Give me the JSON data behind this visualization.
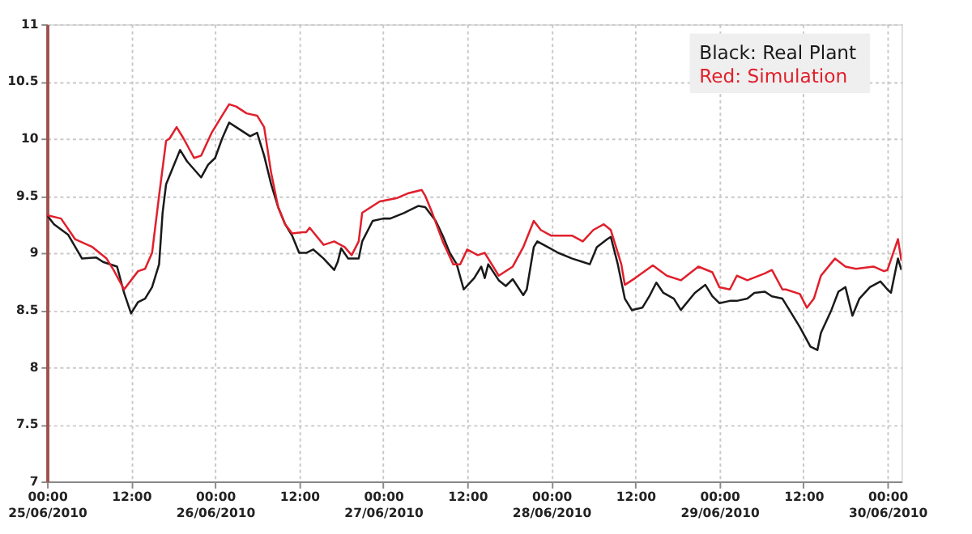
{
  "chart_data": {
    "type": "line",
    "xlim": [
      "2010-06-25T00:00",
      "2010-06-30T02:00"
    ],
    "ylim": [
      7,
      11
    ],
    "xticks": [
      {
        "value": "2010-06-25T00:00",
        "label": "00:00\n25/06/2010"
      },
      {
        "value": "2010-06-25T12:00",
        "label": "12:00"
      },
      {
        "value": "2010-06-26T00:00",
        "label": "00:00\n26/06/2010"
      },
      {
        "value": "2010-06-26T12:00",
        "label": "12:00"
      },
      {
        "value": "2010-06-27T00:00",
        "label": "00:00\n27/06/2010"
      },
      {
        "value": "2010-06-27T12:00",
        "label": "12:00"
      },
      {
        "value": "2010-06-28T00:00",
        "label": "00:00\n28/06/2010"
      },
      {
        "value": "2010-06-28T12:00",
        "label": "12:00"
      },
      {
        "value": "2010-06-29T00:00",
        "label": "00:00\n29/06/2010"
      },
      {
        "value": "2010-06-29T12:00",
        "label": "12:00"
      },
      {
        "value": "2010-06-30T00:00",
        "label": "00:00\n30/06/2010"
      }
    ],
    "yticks": [
      7,
      7.5,
      8,
      8.5,
      9,
      9.5,
      10,
      10.5,
      11
    ],
    "grid": true,
    "legend": "top right",
    "marker": "none",
    "line_style": "solid",
    "series": [
      {
        "name": "Black: Real Plant",
        "color": "#1a1a1a",
        "x": [
          "2010-06-25T00:00",
          "2010-06-25T01:00",
          "2010-06-25T03:00",
          "2010-06-25T05:00",
          "2010-06-25T07:00",
          "2010-06-25T08:00",
          "2010-06-25T10:00",
          "2010-06-25T11:00",
          "2010-06-25T12:00",
          "2010-06-25T13:00",
          "2010-06-25T14:00",
          "2010-06-25T15:00",
          "2010-06-25T16:00",
          "2010-06-25T16:30",
          "2010-06-25T17:00",
          "2010-06-25T18:00",
          "2010-06-25T19:00",
          "2010-06-25T20:00",
          "2010-06-25T22:00",
          "2010-06-25T23:00",
          "2010-06-26T00:00",
          "2010-06-26T01:00",
          "2010-06-26T02:00",
          "2010-06-26T03:00",
          "2010-06-26T05:00",
          "2010-06-26T06:00",
          "2010-06-26T07:00",
          "2010-06-26T08:00",
          "2010-06-26T09:00",
          "2010-06-26T10:00",
          "2010-06-26T11:00",
          "2010-06-26T12:00",
          "2010-06-26T13:00",
          "2010-06-26T14:00",
          "2010-06-26T15:30",
          "2010-06-26T17:00",
          "2010-06-26T17:30",
          "2010-06-26T18:00",
          "2010-06-26T19:00",
          "2010-06-26T20:30",
          "2010-06-26T21:00",
          "2010-06-26T22:30",
          "2010-06-27T00:00",
          "2010-06-27T01:00",
          "2010-06-27T03:00",
          "2010-06-27T05:00",
          "2010-06-27T06:00",
          "2010-06-27T07:30",
          "2010-06-27T08:30",
          "2010-06-27T09:30",
          "2010-06-27T10:30",
          "2010-06-27T11:30",
          "2010-06-27T13:00",
          "2010-06-27T14:00",
          "2010-06-27T14:30",
          "2010-06-27T15:00",
          "2010-06-27T16:30",
          "2010-06-27T17:30",
          "2010-06-27T18:30",
          "2010-06-27T20:00",
          "2010-06-27T20:30",
          "2010-06-27T21:30",
          "2010-06-27T22:00",
          "2010-06-27T23:30",
          "2010-06-28T01:00",
          "2010-06-28T03:00",
          "2010-06-28T04:30",
          "2010-06-28T05:30",
          "2010-06-28T06:30",
          "2010-06-28T08:00",
          "2010-06-28T08:30",
          "2010-06-28T09:30",
          "2010-06-28T10:30",
          "2010-06-28T11:30",
          "2010-06-28T13:00",
          "2010-06-28T14:00",
          "2010-06-28T15:00",
          "2010-06-28T16:00",
          "2010-06-28T17:30",
          "2010-06-28T18:30",
          "2010-06-28T20:30",
          "2010-06-28T22:00",
          "2010-06-28T23:00",
          "2010-06-29T00:00",
          "2010-06-29T01:30",
          "2010-06-29T02:30",
          "2010-06-29T04:00",
          "2010-06-29T05:00",
          "2010-06-29T06:30",
          "2010-06-29T07:30",
          "2010-06-29T09:00",
          "2010-06-29T10:00",
          "2010-06-29T11:30",
          "2010-06-29T13:00",
          "2010-06-29T14:00",
          "2010-06-29T14:30",
          "2010-06-29T16:00",
          "2010-06-29T17:00",
          "2010-06-29T18:00",
          "2010-06-29T19:00",
          "2010-06-29T20:00",
          "2010-06-29T21:30",
          "2010-06-29T23:00",
          "2010-06-30T00:00",
          "2010-06-30T00:30",
          "2010-06-30T01:30",
          "2010-06-30T02:00"
        ],
        "values": [
          9.33,
          9.25,
          9.16,
          8.95,
          8.96,
          8.92,
          8.88,
          8.65,
          8.47,
          8.57,
          8.6,
          8.7,
          8.9,
          9.35,
          9.6,
          9.75,
          9.9,
          9.8,
          9.66,
          9.77,
          9.83,
          10.0,
          10.14,
          10.1,
          10.02,
          10.05,
          9.85,
          9.6,
          9.4,
          9.25,
          9.15,
          9.0,
          9.0,
          9.03,
          8.95,
          8.85,
          8.92,
          9.04,
          8.95,
          8.95,
          9.1,
          9.28,
          9.3,
          9.3,
          9.35,
          9.41,
          9.4,
          9.28,
          9.15,
          9.0,
          8.9,
          8.68,
          8.78,
          8.88,
          8.78,
          8.9,
          8.76,
          8.71,
          8.77,
          8.63,
          8.68,
          9.05,
          9.1,
          9.05,
          9.0,
          8.95,
          8.92,
          8.9,
          9.05,
          9.12,
          9.14,
          8.9,
          8.6,
          8.5,
          8.52,
          8.62,
          8.74,
          8.65,
          8.6,
          8.5,
          8.65,
          8.72,
          8.62,
          8.56,
          8.58,
          8.58,
          8.6,
          8.65,
          8.66,
          8.62,
          8.6,
          8.5,
          8.35,
          8.18,
          8.15,
          8.3,
          8.5,
          8.66,
          8.7,
          8.45,
          8.6,
          8.7,
          8.75,
          8.68,
          8.65,
          8.95,
          8.85
        ]
      },
      {
        "name": "Red: Simulation",
        "color": "#e0202c",
        "x": [
          "2010-06-25T00:00",
          "2010-06-25T02:00",
          "2010-06-25T04:00",
          "2010-06-25T06:30",
          "2010-06-25T08:30",
          "2010-06-25T09:30",
          "2010-06-25T11:00",
          "2010-06-25T13:00",
          "2010-06-25T14:00",
          "2010-06-25T15:00",
          "2010-06-25T16:00",
          "2010-06-25T17:00",
          "2010-06-25T17:30",
          "2010-06-25T18:30",
          "2010-06-25T19:30",
          "2010-06-25T21:00",
          "2010-06-25T22:00",
          "2010-06-25T23:30",
          "2010-06-26T01:00",
          "2010-06-26T02:00",
          "2010-06-26T03:00",
          "2010-06-26T04:30",
          "2010-06-26T06:00",
          "2010-06-26T07:00",
          "2010-06-26T08:00",
          "2010-06-26T09:00",
          "2010-06-26T10:00",
          "2010-06-26T11:00",
          "2010-06-26T12:30",
          "2010-06-26T13:00",
          "2010-06-26T13:30",
          "2010-06-26T15:30",
          "2010-06-26T17:00",
          "2010-06-26T18:30",
          "2010-06-26T19:30",
          "2010-06-26T20:30",
          "2010-06-26T21:00",
          "2010-06-26T23:30",
          "2010-06-27T02:00",
          "2010-06-27T03:30",
          "2010-06-27T05:30",
          "2010-06-27T06:00",
          "2010-06-27T07:00",
          "2010-06-27T08:30",
          "2010-06-27T10:00",
          "2010-06-27T11:00",
          "2010-06-27T12:00",
          "2010-06-27T13:30",
          "2010-06-27T14:30",
          "2010-06-27T15:00",
          "2010-06-27T16:30",
          "2010-06-27T18:30",
          "2010-06-27T20:00",
          "2010-06-27T21:30",
          "2010-06-27T22:30",
          "2010-06-28T00:00",
          "2010-06-28T03:00",
          "2010-06-28T04:30",
          "2010-06-28T06:00",
          "2010-06-28T07:30",
          "2010-06-28T08:30",
          "2010-06-28T10:00",
          "2010-06-28T10:30",
          "2010-06-28T12:00",
          "2010-06-28T14:30",
          "2010-06-28T16:30",
          "2010-06-28T18:30",
          "2010-06-28T21:00",
          "2010-06-28T23:00",
          "2010-06-29T00:00",
          "2010-06-29T01:30",
          "2010-06-29T02:30",
          "2010-06-29T04:00",
          "2010-06-29T06:30",
          "2010-06-29T07:30",
          "2010-06-29T09:00",
          "2010-06-29T09:30",
          "2010-06-29T11:30",
          "2010-06-29T12:30",
          "2010-06-29T13:30",
          "2010-06-29T14:30",
          "2010-06-29T16:30",
          "2010-06-29T18:00",
          "2010-06-29T19:30",
          "2010-06-29T22:00",
          "2010-06-29T23:30",
          "2010-06-30T00:00",
          "2010-06-30T01:30",
          "2010-06-30T02:00"
        ],
        "values": [
          9.33,
          9.3,
          9.12,
          9.05,
          8.95,
          8.85,
          8.68,
          8.84,
          8.86,
          9.0,
          9.5,
          9.98,
          10.0,
          10.1,
          10.0,
          9.83,
          9.85,
          10.05,
          10.2,
          10.3,
          10.28,
          10.22,
          10.2,
          10.1,
          9.7,
          9.4,
          9.25,
          9.17,
          9.18,
          9.18,
          9.22,
          9.07,
          9.1,
          9.05,
          8.98,
          9.1,
          9.35,
          9.45,
          9.48,
          9.52,
          9.55,
          9.5,
          9.35,
          9.1,
          8.9,
          8.9,
          9.03,
          8.98,
          9.0,
          8.95,
          8.8,
          8.88,
          9.05,
          9.28,
          9.2,
          9.15,
          9.15,
          9.1,
          9.2,
          9.25,
          9.2,
          8.9,
          8.72,
          8.78,
          8.89,
          8.8,
          8.76,
          8.88,
          8.83,
          8.7,
          8.68,
          8.8,
          8.76,
          8.82,
          8.85,
          8.68,
          8.68,
          8.64,
          8.52,
          8.6,
          8.8,
          8.95,
          8.88,
          8.86,
          8.88,
          8.84,
          8.85,
          9.12,
          8.93
        ]
      }
    ]
  }
}
